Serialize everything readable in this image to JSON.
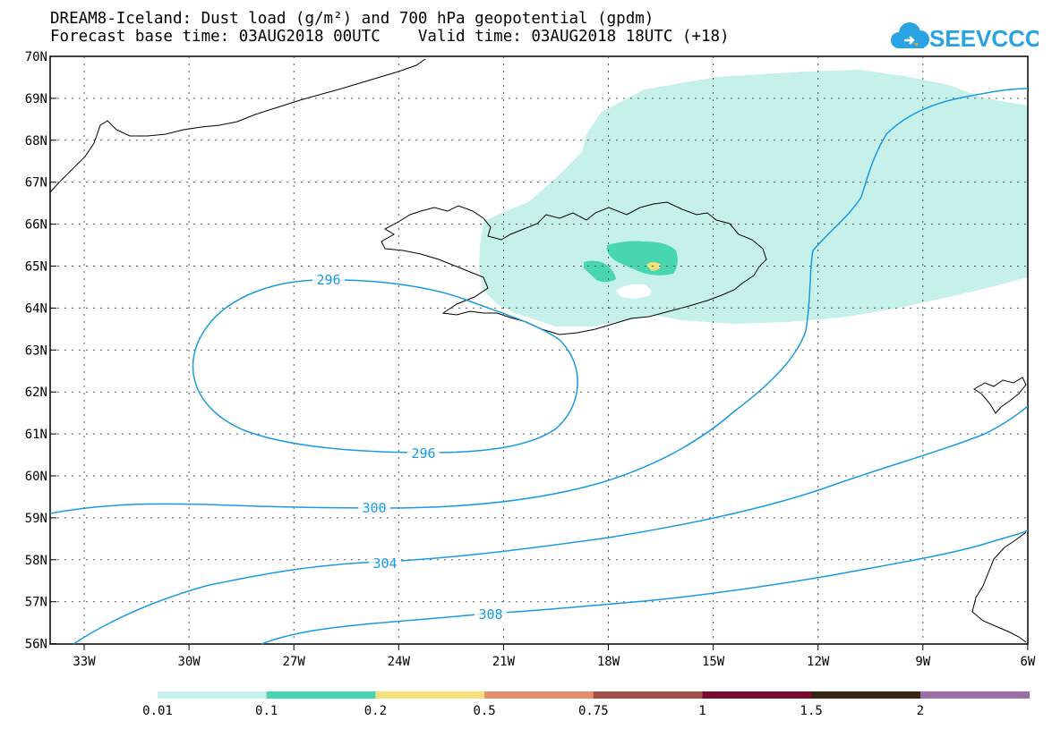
{
  "header": {
    "line1": "DREAM8-Iceland: Dust load (g/m²) and 700 hPa geopotential (gpdm)",
    "line2": "Forecast base time: 03AUG2018 00UTC    Valid time: 03AUG2018 18UTC (+18)"
  },
  "logo": {
    "text": "SEEVCCC",
    "color": "#29a3e3",
    "accent": "#f2a12e"
  },
  "axes": {
    "lat_labels": [
      "70N",
      "69N",
      "68N",
      "67N",
      "66N",
      "65N",
      "64N",
      "63N",
      "62N",
      "61N",
      "60N",
      "59N",
      "58N",
      "57N",
      "56N"
    ],
    "lon_labels": [
      "33W",
      "30W",
      "27W",
      "24W",
      "21W",
      "18W",
      "15W",
      "12W",
      "9W",
      "6W"
    ]
  },
  "contours": {
    "color": "#1a9be0",
    "labels": [
      "296",
      "296",
      "300",
      "304",
      "308"
    ]
  },
  "colorbar": {
    "colors": [
      "#c6f0ea",
      "#47d6b0",
      "#f4e17a",
      "#e88e6b",
      "#a2504a",
      "#7a0a2e",
      "#3a2515",
      "#9b6fa5"
    ],
    "labels": [
      "0.01",
      "0.1",
      "0.2",
      "0.5",
      "0.75",
      "1",
      "1.5",
      "2"
    ]
  }
}
